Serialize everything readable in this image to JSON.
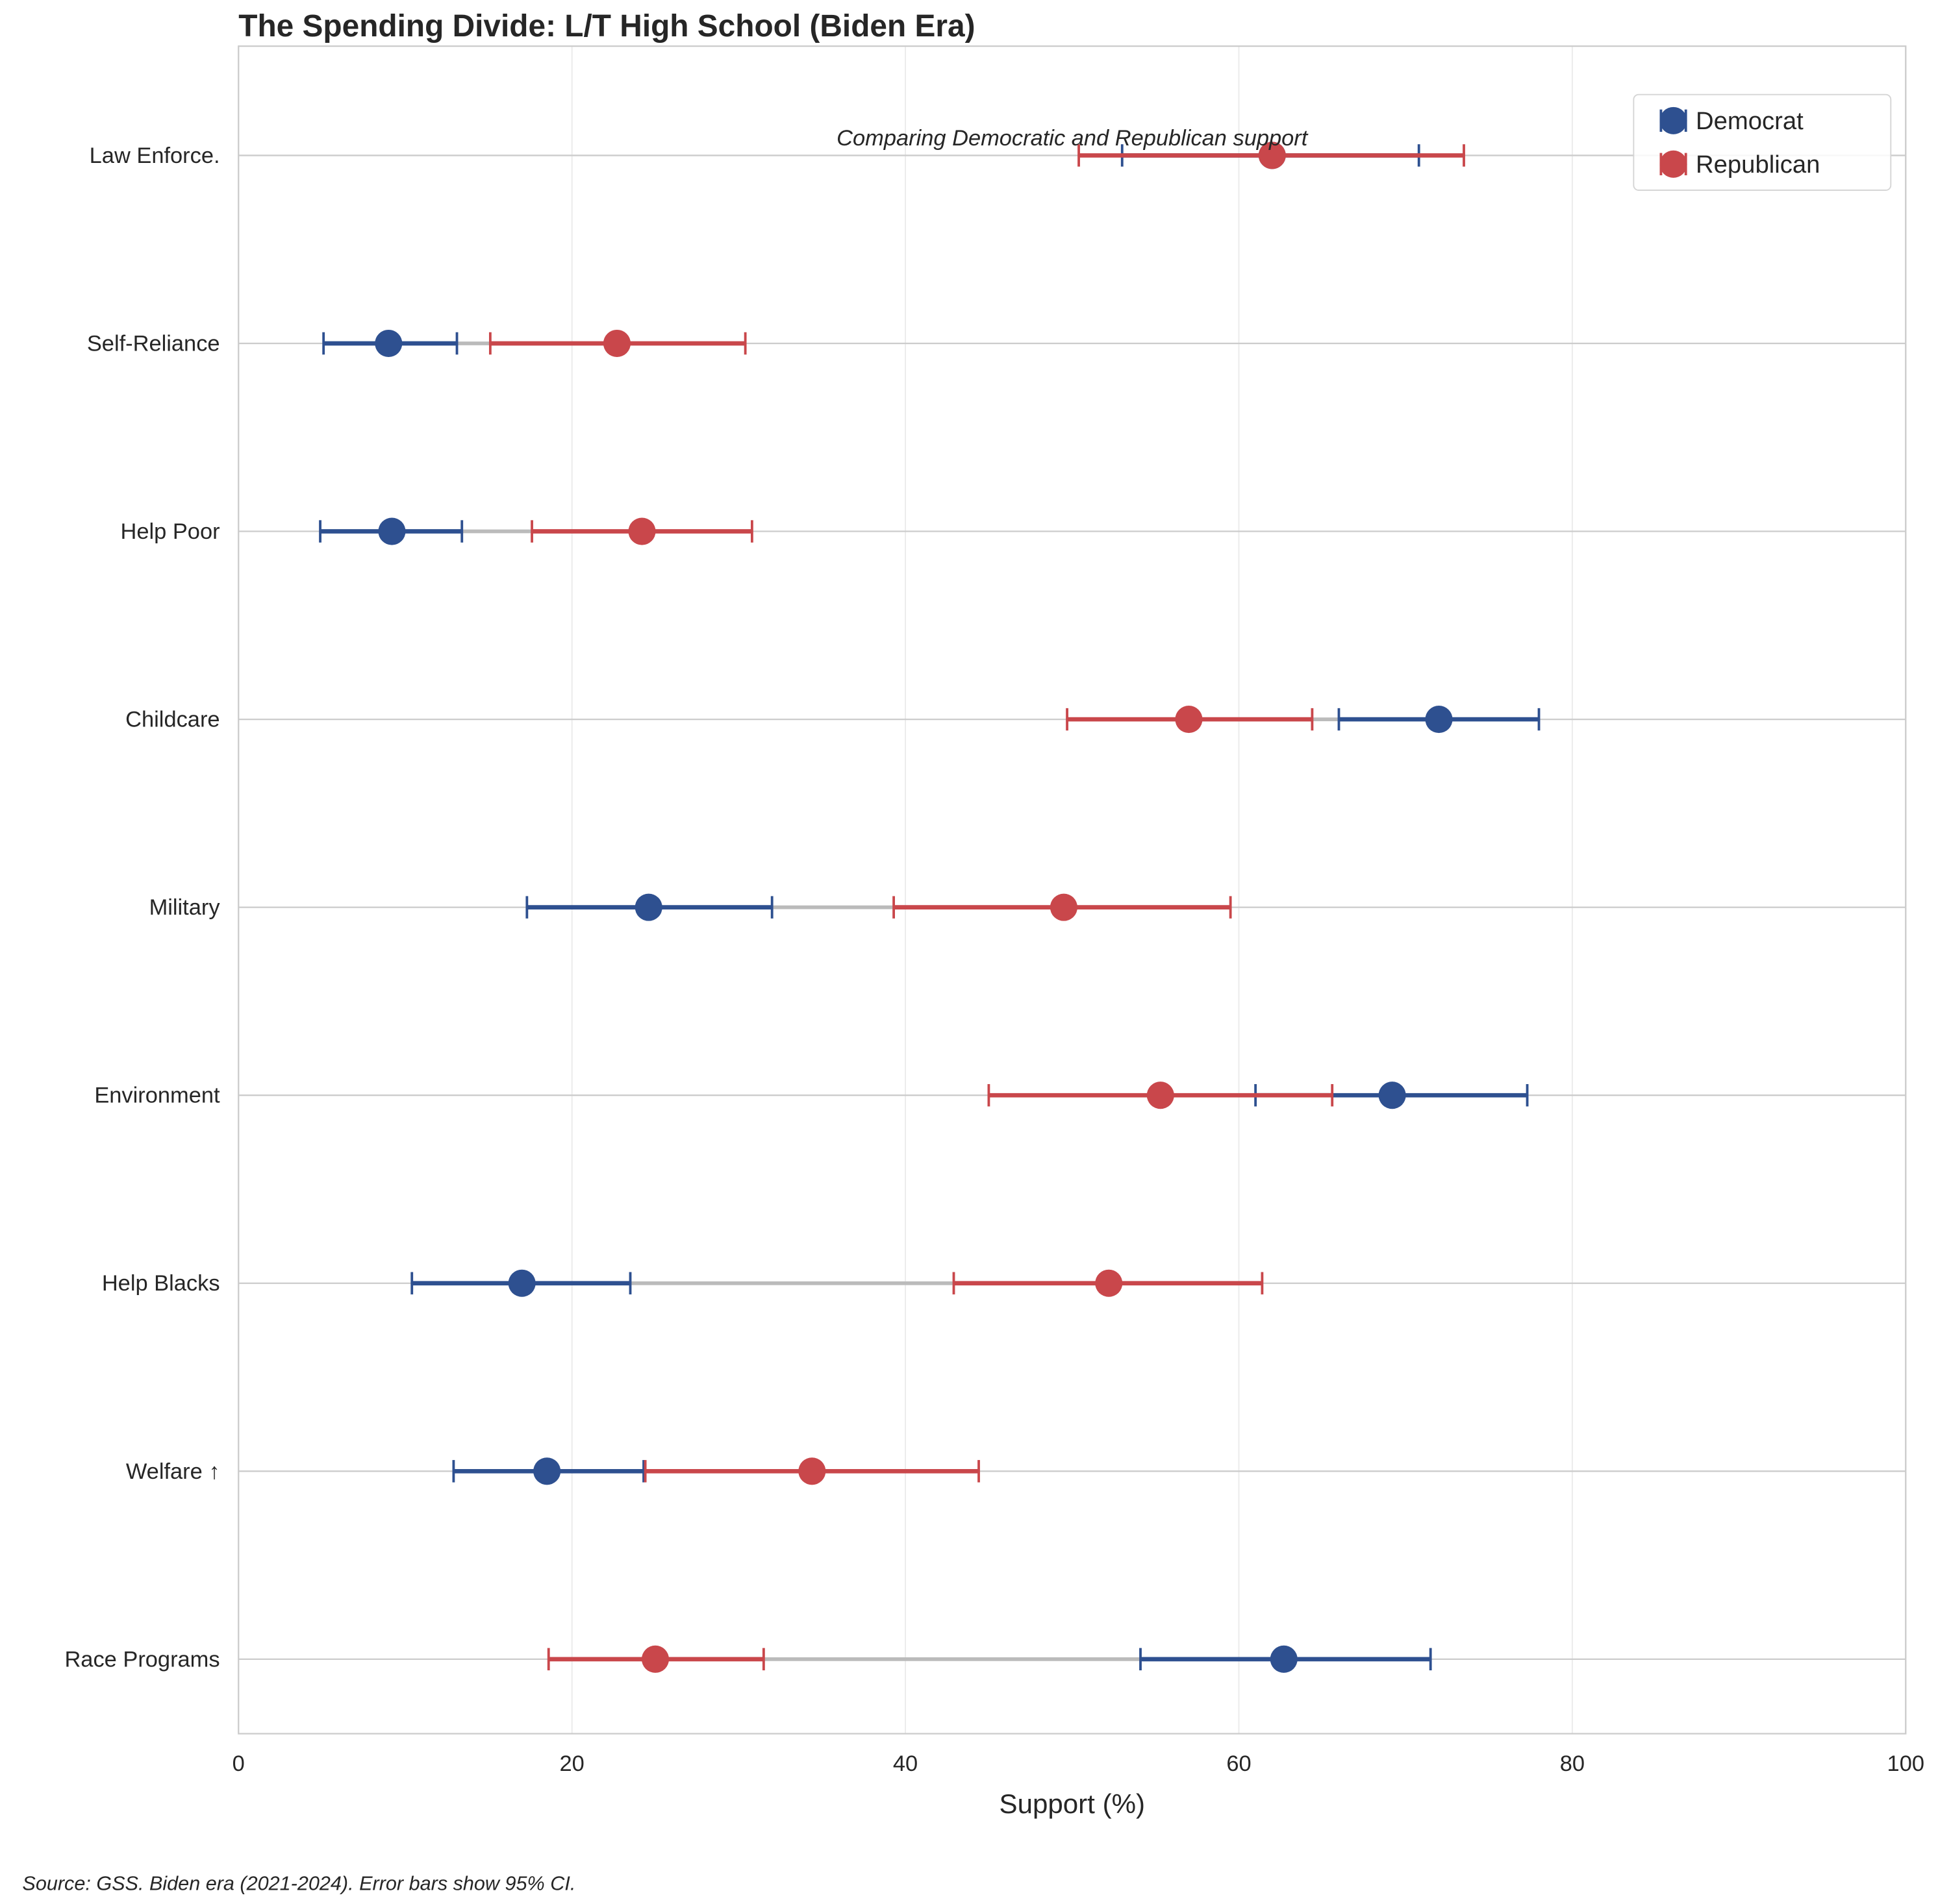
{
  "chart_data": {
    "type": "dumbbell",
    "title": "The Spending Divide: L/T High School (Biden Era)",
    "subtitle": "Comparing Democratic and Republican support",
    "xlabel": "Support (%)",
    "ylabel": "",
    "xlim": [
      0,
      100
    ],
    "xticks": [
      "0",
      "20",
      "40",
      "60",
      "80",
      "100"
    ],
    "grid": true,
    "legend_placement": "top-right",
    "categories": [
      "Law Enforce.",
      "Self-Reliance",
      "Help Poor",
      "Childcare",
      "Military",
      "Environment",
      "Help Blacks",
      "Welfare ↑",
      "Race Programs"
    ],
    "series": [
      {
        "name": "Democrat",
        "color": "#2e5090",
        "values": [
          62.0,
          9.0,
          9.2,
          72.0,
          24.6,
          69.2,
          17.0,
          18.5,
          62.7
        ],
        "ci_low": [
          53.0,
          5.1,
          4.9,
          66.0,
          17.3,
          61.0,
          10.4,
          12.9,
          54.1
        ],
        "ci_high": [
          70.8,
          13.1,
          13.4,
          78.0,
          32.0,
          77.3,
          23.5,
          24.3,
          71.5
        ]
      },
      {
        "name": "Republican",
        "color": "#c9474b",
        "values": [
          62.0,
          22.7,
          24.2,
          57.0,
          49.5,
          55.3,
          52.2,
          34.4,
          25.0
        ],
        "ci_low": [
          50.4,
          15.1,
          17.6,
          49.7,
          39.3,
          45.0,
          42.9,
          24.4,
          18.6
        ],
        "ci_high": [
          73.5,
          30.4,
          30.8,
          64.4,
          59.5,
          65.6,
          61.4,
          44.4,
          31.5
        ]
      }
    ],
    "footnote": "Source: GSS. Biden era (2021-2024). Error bars show 95% CI."
  }
}
